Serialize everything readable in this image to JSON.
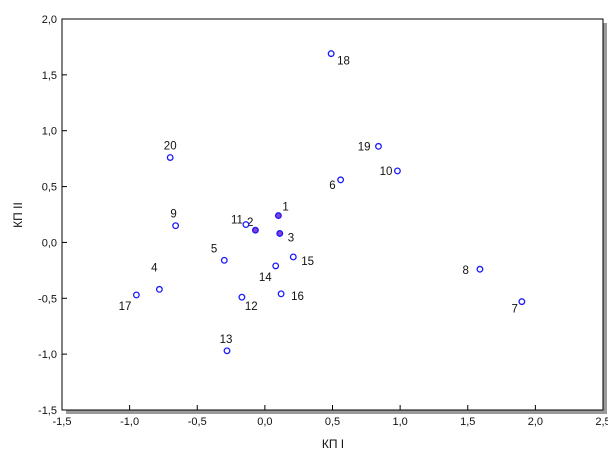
{
  "chart_data": {
    "type": "scatter",
    "title": "",
    "xlabel": "КП I",
    "ylabel": "КП II",
    "xlim": [
      -1.5,
      2.5
    ],
    "ylim": [
      -1.5,
      2.0
    ],
    "xticks": [
      -1.5,
      -1.0,
      -0.5,
      0.0,
      0.5,
      1.0,
      1.5,
      2.0,
      2.5
    ],
    "xtick_labels": [
      "-1,5",
      "-1,0",
      "-0,5",
      "0,0",
      "0,5",
      "1,0",
      "1,5",
      "2,0",
      "2,5"
    ],
    "yticks": [
      -1.5,
      -1.0,
      -0.5,
      0.0,
      0.5,
      1.0,
      1.5,
      2.0
    ],
    "ytick_labels": [
      "-1,5",
      "-1,0",
      "-0,5",
      "0,0",
      "0,5",
      "1,0",
      "1,5",
      "2,0"
    ],
    "grid": false,
    "marker": "open-circle",
    "colors": {
      "marker_stroke": "#1a1aff",
      "highlight_fill": "#8a3fd0",
      "axis": "#000000",
      "frame_shadow": "#9a9a9a"
    },
    "points": [
      {
        "label": "1",
        "x": 0.1,
        "y": 0.24,
        "filled": true
      },
      {
        "label": "2",
        "x": -0.07,
        "y": 0.11,
        "filled": true
      },
      {
        "label": "3",
        "x": 0.11,
        "y": 0.08,
        "filled": true
      },
      {
        "label": "4",
        "x": -0.78,
        "y": -0.42,
        "filled": false
      },
      {
        "label": "5",
        "x": -0.3,
        "y": -0.16,
        "filled": false
      },
      {
        "label": "6",
        "x": 0.56,
        "y": 0.56,
        "filled": false
      },
      {
        "label": "7",
        "x": 1.9,
        "y": -0.53,
        "filled": false
      },
      {
        "label": "8",
        "x": 1.59,
        "y": -0.24,
        "filled": false
      },
      {
        "label": "9",
        "x": -0.66,
        "y": 0.15,
        "filled": false
      },
      {
        "label": "10",
        "x": 0.98,
        "y": 0.64,
        "filled": false
      },
      {
        "label": "11",
        "x": -0.14,
        "y": 0.16,
        "filled": false
      },
      {
        "label": "12",
        "x": -0.17,
        "y": -0.49,
        "filled": false
      },
      {
        "label": "13",
        "x": -0.28,
        "y": -0.97,
        "filled": false
      },
      {
        "label": "14",
        "x": 0.08,
        "y": -0.21,
        "filled": false
      },
      {
        "label": "15",
        "x": 0.21,
        "y": -0.13,
        "filled": false
      },
      {
        "label": "16",
        "x": 0.12,
        "y": -0.46,
        "filled": false
      },
      {
        "label": "17",
        "x": -0.95,
        "y": -0.47,
        "filled": false
      },
      {
        "label": "18",
        "x": 0.49,
        "y": 1.69,
        "filled": false
      },
      {
        "label": "19",
        "x": 0.84,
        "y": 0.86,
        "filled": false
      },
      {
        "label": "20",
        "x": -0.7,
        "y": 0.76,
        "filled": false
      }
    ]
  }
}
